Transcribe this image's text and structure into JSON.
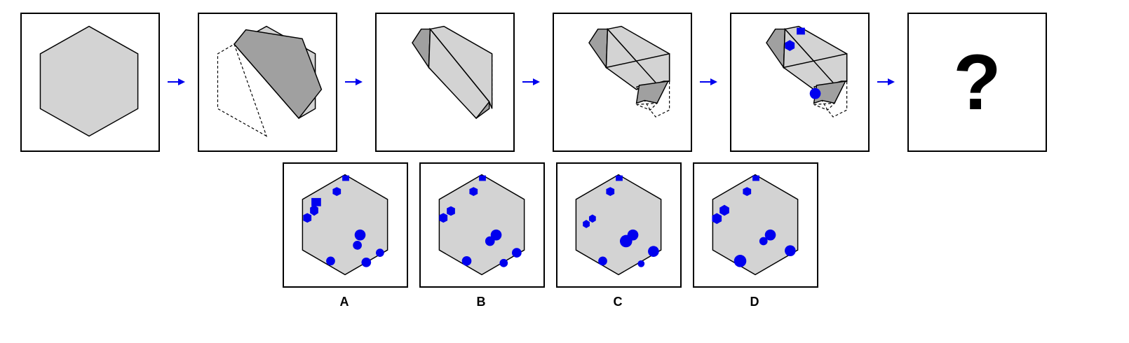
{
  "sequence": {
    "question_mark": "?"
  },
  "options": [
    {
      "label": "A"
    },
    {
      "label": "B"
    },
    {
      "label": "C"
    },
    {
      "label": "D"
    }
  ],
  "colors": {
    "paper": "#d3d3d3",
    "fold": "#a0a0a0",
    "holes": "#0000ee",
    "arrow": "#0000ee",
    "outline": "#000000"
  },
  "icons": [
    "arrow-right-icon",
    "question-mark"
  ]
}
